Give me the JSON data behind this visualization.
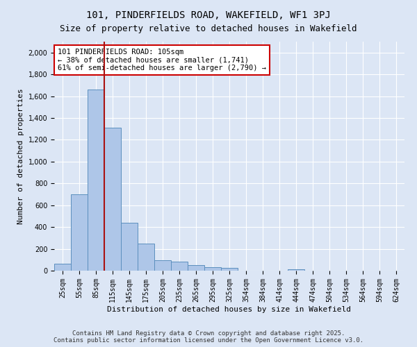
{
  "title": "101, PINDERFIELDS ROAD, WAKEFIELD, WF1 3PJ",
  "subtitle": "Size of property relative to detached houses in Wakefield",
  "xlabel": "Distribution of detached houses by size in Wakefield",
  "ylabel": "Number of detached properties",
  "categories": [
    "25sqm",
    "55sqm",
    "85sqm",
    "115sqm",
    "145sqm",
    "175sqm",
    "205sqm",
    "235sqm",
    "265sqm",
    "295sqm",
    "325sqm",
    "354sqm",
    "384sqm",
    "414sqm",
    "444sqm",
    "474sqm",
    "504sqm",
    "534sqm",
    "564sqm",
    "594sqm",
    "624sqm"
  ],
  "values": [
    65,
    700,
    1660,
    1310,
    440,
    250,
    95,
    80,
    50,
    35,
    25,
    0,
    0,
    0,
    15,
    0,
    0,
    0,
    0,
    0,
    0
  ],
  "bar_color": "#aec6e8",
  "bar_edge_color": "#5b8fbe",
  "vline_color": "#aa1111",
  "annotation_text": "101 PINDERFIELDS ROAD: 105sqm\n← 38% of detached houses are smaller (1,741)\n61% of semi-detached houses are larger (2,790) →",
  "annotation_box_color": "#ffffff",
  "annotation_box_edge_color": "#cc0000",
  "ylim": [
    0,
    2100
  ],
  "yticks": [
    0,
    200,
    400,
    600,
    800,
    1000,
    1200,
    1400,
    1600,
    1800,
    2000
  ],
  "background_color": "#dce6f5",
  "plot_bg_color": "#dce6f5",
  "footnote": "Contains HM Land Registry data © Crown copyright and database right 2025.\nContains public sector information licensed under the Open Government Licence v3.0.",
  "title_fontsize": 10,
  "subtitle_fontsize": 9,
  "xlabel_fontsize": 8,
  "ylabel_fontsize": 8,
  "tick_fontsize": 7,
  "annotation_fontsize": 7.5,
  "footnote_fontsize": 6.5
}
